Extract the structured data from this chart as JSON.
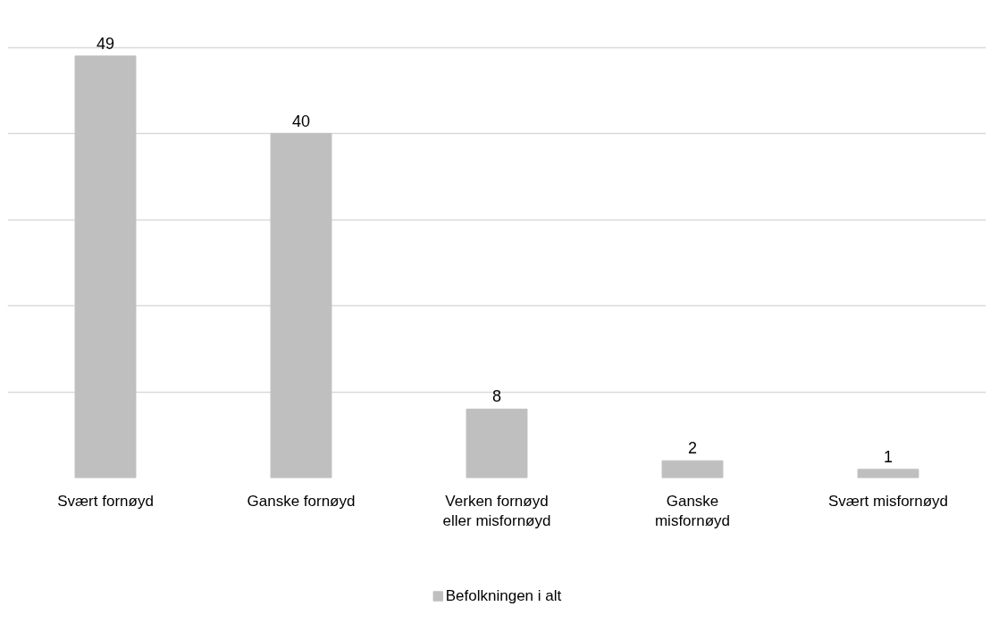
{
  "chart_data": {
    "type": "bar",
    "categories": [
      "Svært fornøyd",
      "Ganske fornøyd",
      "Verken fornøyd\neller misfornøyd",
      "Ganske\nmisfornøyd",
      "Svært misfornøyd"
    ],
    "series": [
      {
        "name": "Befolkningen i alt",
        "color": "#bfbfbf",
        "values": [
          49,
          40,
          8,
          2,
          1
        ]
      }
    ],
    "tick_labels": "x",
    "grid": "y",
    "legend": "bottom",
    "data_labels": true
  }
}
